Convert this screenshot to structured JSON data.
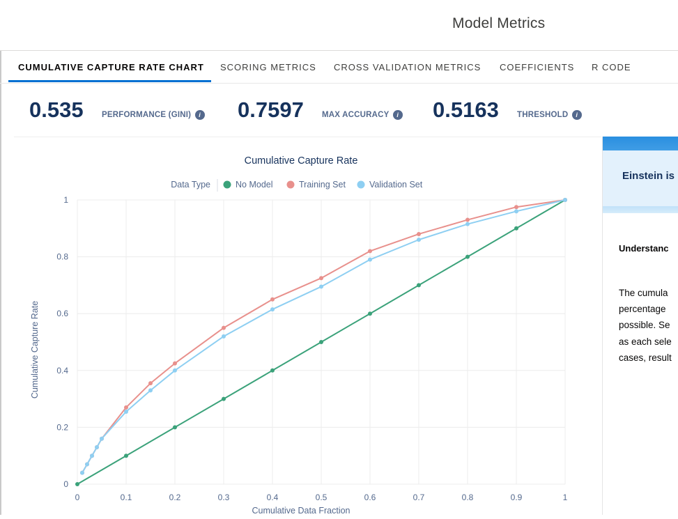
{
  "header": {
    "title": "Model Metrics"
  },
  "tabs": [
    {
      "label": "CUMULATIVE CAPTURE RATE CHART",
      "active": true
    },
    {
      "label": "SCORING METRICS"
    },
    {
      "label": "CROSS VALIDATION METRICS"
    },
    {
      "label": "COEFFICIENTS"
    },
    {
      "label": "R CODE"
    }
  ],
  "metrics": [
    {
      "value": "0.535",
      "label": "PERFORMANCE (GINI)"
    },
    {
      "value": "0.7597",
      "label": "MAX ACCURACY"
    },
    {
      "value": "0.5163",
      "label": "THRESHOLD"
    }
  ],
  "side_panel": {
    "banner": "Einstein is",
    "heading": "Understanc",
    "lines": [
      "The cumula",
      "percentage",
      "possible. Se",
      "as each sele",
      "cases, result"
    ]
  },
  "colors": {
    "no_model": "#3ba27a",
    "training": "#e8908c",
    "validation": "#8ecff2",
    "accent": "#0070d2"
  },
  "icons": {
    "info": "info-icon"
  },
  "chart_data": {
    "type": "line",
    "title": "Cumulative Capture Rate",
    "legend_title": "Data Type",
    "legend_position": "top",
    "xlabel": "Cumulative Data Fraction",
    "ylabel": "Cumulative Capture Rate",
    "xlim": [
      0,
      1
    ],
    "ylim": [
      0,
      1
    ],
    "grid": true,
    "x_ticks": [
      "0",
      "0.1",
      "0.2",
      "0.3",
      "0.4",
      "0.5",
      "0.6",
      "0.7",
      "0.8",
      "0.9",
      "1"
    ],
    "y_ticks": [
      "0",
      "0.2",
      "0.4",
      "0.6",
      "0.8",
      "1"
    ],
    "series": [
      {
        "name": "No Model",
        "x": [
          0,
          0.1,
          0.2,
          0.3,
          0.4,
          0.5,
          0.6,
          0.7,
          0.8,
          0.9,
          1
        ],
        "y": [
          0,
          0.1,
          0.2,
          0.3,
          0.4,
          0.5,
          0.6,
          0.7,
          0.8,
          0.9,
          1
        ]
      },
      {
        "name": "Training Set",
        "x": [
          0.01,
          0.02,
          0.03,
          0.04,
          0.05,
          0.1,
          0.15,
          0.2,
          0.3,
          0.4,
          0.5,
          0.6,
          0.7,
          0.8,
          0.9,
          1
        ],
        "y": [
          0.04,
          0.07,
          0.1,
          0.13,
          0.16,
          0.27,
          0.355,
          0.425,
          0.55,
          0.65,
          0.725,
          0.82,
          0.88,
          0.93,
          0.975,
          1
        ]
      },
      {
        "name": "Validation Set",
        "x": [
          0.01,
          0.02,
          0.03,
          0.04,
          0.05,
          0.1,
          0.15,
          0.2,
          0.3,
          0.4,
          0.5,
          0.6,
          0.7,
          0.8,
          0.9,
          1
        ],
        "y": [
          0.04,
          0.07,
          0.1,
          0.13,
          0.16,
          0.255,
          0.33,
          0.4,
          0.52,
          0.615,
          0.695,
          0.79,
          0.86,
          0.915,
          0.96,
          1
        ]
      }
    ]
  }
}
